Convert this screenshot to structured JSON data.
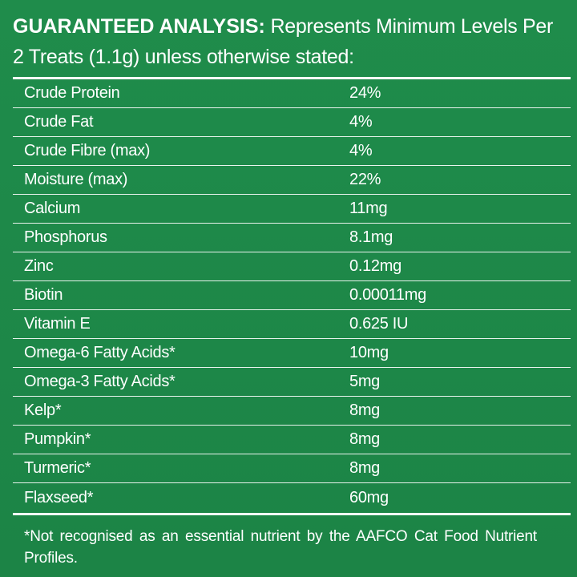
{
  "header": {
    "title": "GUARANTEED ANALYSIS:",
    "subtitle": "Represents Minimum Levels Per 2 Treats (1.1g) unless otherwise stated:"
  },
  "analysis": {
    "rows": [
      {
        "name": "Crude Protein",
        "value": "24%"
      },
      {
        "name": "Crude Fat",
        "value": "4%"
      },
      {
        "name": "Crude Fibre (max)",
        "value": "4%"
      },
      {
        "name": "Moisture (max)",
        "value": "22%"
      },
      {
        "name": "Calcium",
        "value": "11mg"
      },
      {
        "name": "Phosphorus",
        "value": "8.1mg"
      },
      {
        "name": "Zinc",
        "value": "0.12mg"
      },
      {
        "name": "Biotin",
        "value": "0.00011mg"
      },
      {
        "name": "Vitamin E",
        "value": "0.625 IU"
      },
      {
        "name": "Omega-6 Fatty Acids*",
        "value": "10mg"
      },
      {
        "name": "Omega-3 Fatty Acids*",
        "value": "5mg"
      },
      {
        "name": "Kelp*",
        "value": "8mg"
      },
      {
        "name": "Pumpkin*",
        "value": "8mg"
      },
      {
        "name": "Turmeric*",
        "value": "8mg"
      },
      {
        "name": "Flaxseed*",
        "value": "60mg"
      }
    ]
  },
  "footnote": "*Not recognised as an essential nutrient by the AAFCO Cat Food Nutrient Profiles.",
  "colors": {
    "background": "#1e8a49",
    "text": "#ffffff"
  }
}
